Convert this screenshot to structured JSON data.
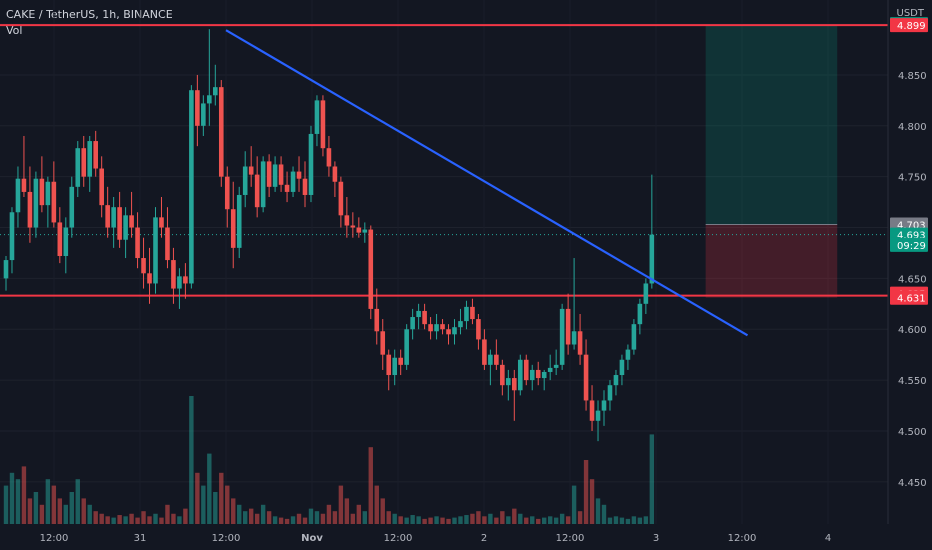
{
  "header": {
    "symbol_line": "CAKE / TetherUS, 1h, BINANCE",
    "vol_label": "Vol"
  },
  "axis": {
    "currency": "USDT"
  },
  "chart_data": {
    "type": "candlestick",
    "title": "CAKE / TetherUS, 1h, BINANCE",
    "ylim": [
      4.44,
      4.905
    ],
    "y_ticks": [
      "4.900",
      "4.850",
      "4.800",
      "4.750",
      "4.700",
      "4.650",
      "4.600",
      "4.550",
      "4.500",
      "4.450"
    ],
    "x_ticks": [
      "12:00",
      "31",
      "12:00",
      "Nov",
      "12:00",
      "2",
      "12:00",
      "3",
      "12:00",
      "4"
    ],
    "colors": {
      "up": "#26a69a",
      "down": "#ef5350",
      "trend": "#2962ff",
      "level": "#f23645"
    },
    "horizontal_levels": [
      4.899,
      4.633
    ],
    "trendline": {
      "start": [
        0,
        4.894
      ],
      "end": [
        124,
        4.594
      ]
    },
    "position": {
      "entry": 4.703,
      "target": 4.899,
      "stop": 4.631,
      "start_index": 117,
      "end_index": 139
    },
    "price_labels": [
      {
        "text": "4.900",
        "value": 4.9,
        "color": "#089981"
      },
      {
        "text": "4.899",
        "value": 4.899,
        "color": "#f23645"
      },
      {
        "text": "4.703",
        "value": 4.703,
        "color": "#787b86"
      },
      {
        "text": "4.693",
        "value": 4.693,
        "color": "#089981"
      },
      {
        "text": "09:29",
        "value": 4.683,
        "color": "#089981"
      },
      {
        "text": "4.635",
        "value": 4.635,
        "color": "#f23645"
      },
      {
        "text": "4.631",
        "value": 4.631,
        "color": "#f23645"
      }
    ],
    "ohlc": [
      [
        4.65,
        4.672,
        4.638,
        4.668
      ],
      [
        4.668,
        4.72,
        4.655,
        4.715
      ],
      [
        4.715,
        4.76,
        4.7,
        4.748
      ],
      [
        4.748,
        4.79,
        4.73,
        4.735
      ],
      [
        4.735,
        4.76,
        4.685,
        4.7
      ],
      [
        4.7,
        4.755,
        4.69,
        4.748
      ],
      [
        4.748,
        4.77,
        4.715,
        4.722
      ],
      [
        4.722,
        4.75,
        4.7,
        4.745
      ],
      [
        4.745,
        4.765,
        4.7,
        4.705
      ],
      [
        4.705,
        4.72,
        4.665,
        4.672
      ],
      [
        4.672,
        4.71,
        4.655,
        4.7
      ],
      [
        4.7,
        4.75,
        4.69,
        4.74
      ],
      [
        4.74,
        4.785,
        4.73,
        4.778
      ],
      [
        4.778,
        4.79,
        4.74,
        4.75
      ],
      [
        4.75,
        4.79,
        4.735,
        4.785
      ],
      [
        4.785,
        4.795,
        4.75,
        4.758
      ],
      [
        4.758,
        4.77,
        4.71,
        4.722
      ],
      [
        4.722,
        4.74,
        4.69,
        4.7
      ],
      [
        4.7,
        4.73,
        4.68,
        4.72
      ],
      [
        4.72,
        4.735,
        4.68,
        4.688
      ],
      [
        4.688,
        4.72,
        4.67,
        4.712
      ],
      [
        4.712,
        4.735,
        4.69,
        4.7
      ],
      [
        4.7,
        4.715,
        4.66,
        4.67
      ],
      [
        4.67,
        4.69,
        4.64,
        4.655
      ],
      [
        4.655,
        4.68,
        4.625,
        4.645
      ],
      [
        4.645,
        4.72,
        4.635,
        4.71
      ],
      [
        4.71,
        4.73,
        4.69,
        4.7
      ],
      [
        4.7,
        4.72,
        4.66,
        4.668
      ],
      [
        4.668,
        4.68,
        4.625,
        4.64
      ],
      [
        4.64,
        4.66,
        4.62,
        4.652
      ],
      [
        4.652,
        4.665,
        4.63,
        4.645
      ],
      [
        4.645,
        4.84,
        4.64,
        4.835
      ],
      [
        4.835,
        4.85,
        4.78,
        4.8
      ],
      [
        4.8,
        4.83,
        4.79,
        4.822
      ],
      [
        4.822,
        4.895,
        4.8,
        4.83
      ],
      [
        4.83,
        4.86,
        4.82,
        4.838
      ],
      [
        4.838,
        4.845,
        4.74,
        4.75
      ],
      [
        4.75,
        4.76,
        4.7,
        4.718
      ],
      [
        4.718,
        4.745,
        4.66,
        4.68
      ],
      [
        4.68,
        4.74,
        4.67,
        4.732
      ],
      [
        4.732,
        4.775,
        4.72,
        4.76
      ],
      [
        4.76,
        4.78,
        4.74,
        4.752
      ],
      [
        4.752,
        4.77,
        4.71,
        4.72
      ],
      [
        4.72,
        4.77,
        4.715,
        4.765
      ],
      [
        4.765,
        4.772,
        4.73,
        4.74
      ],
      [
        4.74,
        4.77,
        4.735,
        4.762
      ],
      [
        4.762,
        4.77,
        4.735,
        4.742
      ],
      [
        4.742,
        4.755,
        4.725,
        4.735
      ],
      [
        4.735,
        4.76,
        4.73,
        4.755
      ],
      [
        4.755,
        4.77,
        4.735,
        4.748
      ],
      [
        4.748,
        4.765,
        4.72,
        4.732
      ],
      [
        4.732,
        4.8,
        4.725,
        4.792
      ],
      [
        4.792,
        4.83,
        4.78,
        4.825
      ],
      [
        4.825,
        4.83,
        4.77,
        4.778
      ],
      [
        4.778,
        4.79,
        4.75,
        4.76
      ],
      [
        4.76,
        4.765,
        4.73,
        4.745
      ],
      [
        4.745,
        4.75,
        4.7,
        4.712
      ],
      [
        4.712,
        4.73,
        4.69,
        4.702
      ],
      [
        4.702,
        4.715,
        4.69,
        4.7
      ],
      [
        4.7,
        4.71,
        4.69,
        4.695
      ],
      [
        4.695,
        4.705,
        4.685,
        4.698
      ],
      [
        4.698,
        4.702,
        4.61,
        4.62
      ],
      [
        4.62,
        4.64,
        4.585,
        4.598
      ],
      [
        4.598,
        4.61,
        4.56,
        4.575
      ],
      [
        4.575,
        4.58,
        4.54,
        4.555
      ],
      [
        4.555,
        4.58,
        4.545,
        4.572
      ],
      [
        4.572,
        4.58,
        4.555,
        4.565
      ],
      [
        4.565,
        4.605,
        4.56,
        4.6
      ],
      [
        4.6,
        4.62,
        4.59,
        4.612
      ],
      [
        4.612,
        4.625,
        4.6,
        4.618
      ],
      [
        4.618,
        4.625,
        4.6,
        4.605
      ],
      [
        4.605,
        4.612,
        4.59,
        4.598
      ],
      [
        4.598,
        4.615,
        4.59,
        4.605
      ],
      [
        4.605,
        4.61,
        4.595,
        4.6
      ],
      [
        4.6,
        4.605,
        4.585,
        4.595
      ],
      [
        4.595,
        4.61,
        4.585,
        4.602
      ],
      [
        4.602,
        4.62,
        4.595,
        4.608
      ],
      [
        4.608,
        4.628,
        4.6,
        4.622
      ],
      [
        4.622,
        4.63,
        4.605,
        4.61
      ],
      [
        4.61,
        4.615,
        4.58,
        4.59
      ],
      [
        4.59,
        4.6,
        4.56,
        4.565
      ],
      [
        4.565,
        4.58,
        4.545,
        4.575
      ],
      [
        4.575,
        4.59,
        4.56,
        4.565
      ],
      [
        4.565,
        4.57,
        4.535,
        4.545
      ],
      [
        4.545,
        4.56,
        4.53,
        4.552
      ],
      [
        4.552,
        4.56,
        4.51,
        4.54
      ],
      [
        4.54,
        4.575,
        4.535,
        4.57
      ],
      [
        4.57,
        4.575,
        4.545,
        4.55
      ],
      [
        4.55,
        4.565,
        4.54,
        4.56
      ],
      [
        4.56,
        4.568,
        4.545,
        4.552
      ],
      [
        4.552,
        4.56,
        4.54,
        4.558
      ],
      [
        4.558,
        4.575,
        4.55,
        4.562
      ],
      [
        4.562,
        4.58,
        4.555,
        4.565
      ],
      [
        4.565,
        4.625,
        4.56,
        4.62
      ],
      [
        4.62,
        4.635,
        4.575,
        4.585
      ],
      [
        4.585,
        4.67,
        4.58,
        4.598
      ],
      [
        4.598,
        4.615,
        4.565,
        4.575
      ],
      [
        4.575,
        4.59,
        4.52,
        4.53
      ],
      [
        4.53,
        4.545,
        4.5,
        4.51
      ],
      [
        4.51,
        4.53,
        4.49,
        4.52
      ],
      [
        4.52,
        4.54,
        4.505,
        4.53
      ],
      [
        4.53,
        4.55,
        4.52,
        4.545
      ],
      [
        4.545,
        4.56,
        4.535,
        4.555
      ],
      [
        4.555,
        4.575,
        4.545,
        4.57
      ],
      [
        4.57,
        4.585,
        4.56,
        4.58
      ],
      [
        4.58,
        4.61,
        4.575,
        4.605
      ],
      [
        4.605,
        4.63,
        4.595,
        4.625
      ],
      [
        4.625,
        4.65,
        4.615,
        4.645
      ],
      [
        4.645,
        4.752,
        4.64,
        4.693
      ]
    ],
    "volume": [
      0.3,
      0.4,
      0.35,
      0.45,
      0.2,
      0.25,
      0.15,
      0.35,
      0.3,
      0.2,
      0.15,
      0.25,
      0.35,
      0.2,
      0.15,
      0.1,
      0.08,
      0.06,
      0.05,
      0.07,
      0.06,
      0.08,
      0.05,
      0.1,
      0.06,
      0.08,
      0.05,
      0.15,
      0.08,
      0.06,
      0.12,
      1.0,
      0.4,
      0.3,
      0.55,
      0.25,
      0.4,
      0.3,
      0.2,
      0.15,
      0.1,
      0.12,
      0.08,
      0.15,
      0.1,
      0.06,
      0.05,
      0.04,
      0.06,
      0.08,
      0.05,
      0.12,
      0.1,
      0.08,
      0.15,
      0.1,
      0.3,
      0.2,
      0.08,
      0.15,
      0.1,
      0.6,
      0.3,
      0.2,
      0.1,
      0.08,
      0.06,
      0.05,
      0.07,
      0.06,
      0.04,
      0.05,
      0.06,
      0.05,
      0.04,
      0.05,
      0.06,
      0.07,
      0.08,
      0.1,
      0.06,
      0.08,
      0.05,
      0.1,
      0.06,
      0.12,
      0.08,
      0.05,
      0.06,
      0.04,
      0.05,
      0.06,
      0.05,
      0.08,
      0.06,
      0.3,
      0.1,
      0.5,
      0.35,
      0.2,
      0.15,
      0.05,
      0.06,
      0.05,
      0.04,
      0.06,
      0.05,
      0.06,
      0.7
    ]
  }
}
